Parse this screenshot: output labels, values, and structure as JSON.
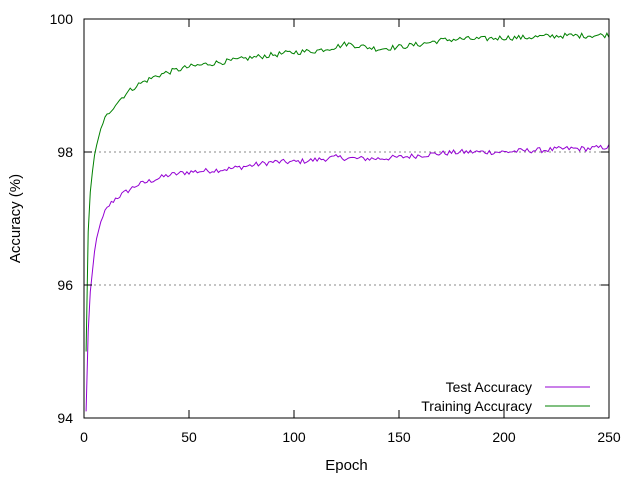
{
  "chart_data": {
    "type": "line",
    "xlabel": "Epoch",
    "ylabel": "Accuracy (%)",
    "xlim": [
      0,
      250
    ],
    "ylim": [
      94,
      100
    ],
    "xticks": [
      0,
      50,
      100,
      150,
      200,
      250
    ],
    "yticks": [
      94,
      96,
      98,
      100
    ],
    "grid": "horizontal dotted",
    "legend_position": "bottom-right",
    "series": [
      {
        "name": "Test Accuracy",
        "color": "#9400d3",
        "x": [
          1,
          2,
          3,
          4,
          5,
          6,
          8,
          10,
          12,
          15,
          20,
          25,
          30,
          35,
          40,
          50,
          60,
          70,
          80,
          90,
          100,
          110,
          120,
          130,
          140,
          150,
          160,
          170,
          180,
          190,
          200,
          210,
          220,
          230,
          240,
          250
        ],
        "y": [
          94.1,
          95.3,
          95.9,
          96.2,
          96.5,
          96.7,
          96.95,
          97.1,
          97.2,
          97.3,
          97.4,
          97.5,
          97.55,
          97.6,
          97.65,
          97.7,
          97.72,
          97.75,
          97.8,
          97.85,
          97.85,
          97.88,
          97.92,
          97.9,
          97.9,
          97.92,
          97.95,
          97.98,
          98.0,
          98.0,
          98.0,
          98.02,
          98.03,
          98.05,
          98.05,
          98.08
        ]
      },
      {
        "name": "Training Accuracy",
        "color": "#008000",
        "x": [
          1,
          2,
          3,
          4,
          5,
          6,
          8,
          10,
          12,
          15,
          20,
          25,
          30,
          35,
          40,
          50,
          60,
          70,
          80,
          90,
          100,
          110,
          120,
          125,
          130,
          140,
          150,
          160,
          170,
          180,
          190,
          200,
          210,
          220,
          230,
          240,
          250
        ],
        "y": [
          95.0,
          96.8,
          97.4,
          97.7,
          97.95,
          98.1,
          98.35,
          98.5,
          98.6,
          98.72,
          98.88,
          99.0,
          99.08,
          99.15,
          99.2,
          99.28,
          99.33,
          99.37,
          99.42,
          99.46,
          99.5,
          99.52,
          99.58,
          99.63,
          99.6,
          99.55,
          99.58,
          99.62,
          99.68,
          99.7,
          99.7,
          99.72,
          99.72,
          99.74,
          99.75,
          99.75,
          99.76
        ]
      }
    ]
  }
}
